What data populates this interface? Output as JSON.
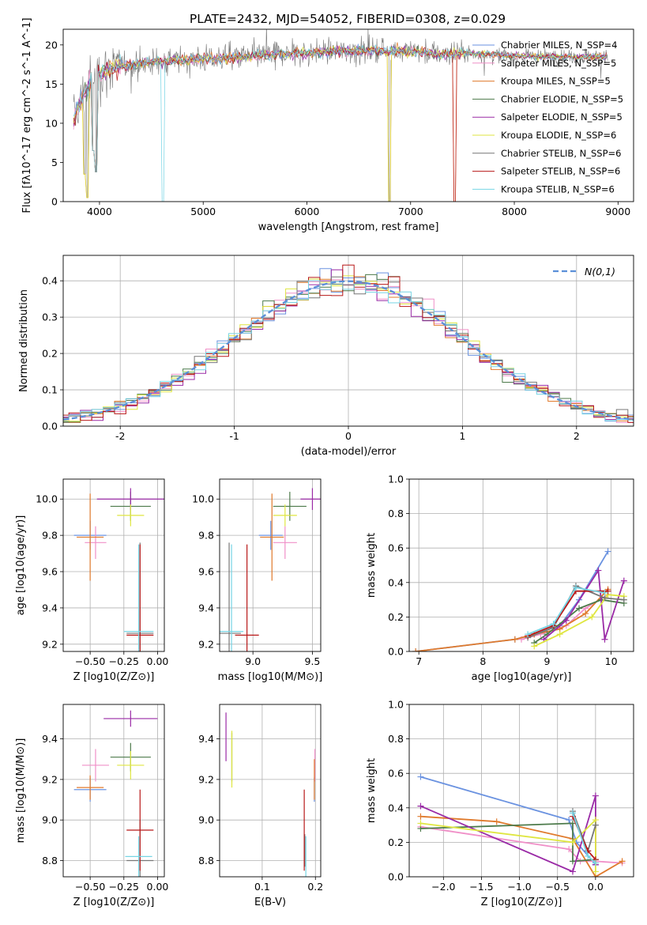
{
  "figure": {
    "title": "PLATE=2432, MJD=54052, FIBERID=0308, z=0.029"
  },
  "colors": {
    "chabrier_miles": "#6a92e0",
    "salpeter_miles": "#f090c8",
    "kroupa_miles": "#e07a2c",
    "chabrier_elodie": "#4c7a4a",
    "salpeter_elodie": "#9a2aa6",
    "kroupa_elodie": "#dfe640",
    "chabrier_stelib": "#777777",
    "salpeter_stelib": "#b81818",
    "kroupa_stelib": "#76d4e4",
    "normal_curve": "#5b8fd8",
    "grid": "#b0b0b0"
  },
  "chart_data": [
    {
      "id": "spectrum",
      "type": "line",
      "title": "PLATE=2432, MJD=54052, FIBERID=0308, z=0.029",
      "xlabel": "wavelength [Angstrom, rest frame]",
      "ylabel": "Flux [fλ10^-17 erg cm^-2 s^-1 A^-1]",
      "xlim": [
        3650,
        9150
      ],
      "ylim": [
        0,
        22
      ],
      "xticks": [
        4000,
        5000,
        6000,
        7000,
        8000,
        9000
      ],
      "yticks": [
        0,
        5,
        10,
        15,
        20
      ],
      "grid": false,
      "legend_position": "top-right",
      "legend": [
        {
          "label": "Chabrier MILES, N_SSP=4",
          "color": "#6a92e0"
        },
        {
          "label": "Salpeter MILES, N_SSP=5",
          "color": "#f090c8"
        },
        {
          "label": "Kroupa MILES, N_SSP=5",
          "color": "#e07a2c"
        },
        {
          "label": "Chabrier ELODIE, N_SSP=5",
          "color": "#4c7a4a"
        },
        {
          "label": "Salpeter ELODIE, N_SSP=5",
          "color": "#9a2aa6"
        },
        {
          "label": "Kroupa ELODIE, N_SSP=6",
          "color": "#dfe640"
        },
        {
          "label": "Chabrier STELIB, N_SSP=6",
          "color": "#777777"
        },
        {
          "label": "Salpeter STELIB, N_SSP=6",
          "color": "#b81818"
        },
        {
          "label": "Kroupa STELIB, N_SSP=6",
          "color": "#76d4e4"
        }
      ],
      "continuum": {
        "x": [
          3750,
          3800,
          3900,
          4000,
          4100,
          4300,
          4500,
          4700,
          5000,
          5500,
          6000,
          6500,
          7000,
          7300,
          7500,
          7700,
          8000,
          8300,
          8600,
          8900
        ],
        "y": [
          10.5,
          12.5,
          15.0,
          16.2,
          17.0,
          17.5,
          17.8,
          18.0,
          18.2,
          18.6,
          19.0,
          19.3,
          19.2,
          18.8,
          19.0,
          18.8,
          18.6,
          18.5,
          18.5,
          18.5
        ]
      },
      "dips": [
        {
          "x": 3860,
          "y": 3.5
        },
        {
          "x": 3885,
          "y": 0.5
        },
        {
          "x": 3933,
          "y": 6.5
        },
        {
          "x": 3968,
          "y": 3.8
        },
        {
          "x": 4615,
          "y": 0.0
        },
        {
          "x": 6800,
          "y": 0.0
        },
        {
          "x": 7425,
          "y": 0.0
        }
      ]
    },
    {
      "id": "residuals",
      "type": "histogram",
      "xlabel": "(data-model)/error",
      "ylabel": "Normed distribution",
      "xlim": [
        -2.5,
        2.5
      ],
      "ylim": [
        0,
        0.47
      ],
      "xticks": [
        -2,
        -1,
        0,
        1,
        2
      ],
      "yticks": [
        0.0,
        0.1,
        0.2,
        0.3,
        0.4
      ],
      "grid": true,
      "legend_position": "top-right",
      "normal_label": "N(0,1)",
      "bin_width": 0.1
    },
    {
      "id": "age_vs_Z",
      "type": "errorbar",
      "xlabel": "Z [log10(Z/Z⊙)]",
      "ylabel": "age [log10(age/yr)]",
      "xlim": [
        -0.7,
        0.05
      ],
      "ylim": [
        9.16,
        10.11
      ],
      "xticks": [
        -0.5,
        -0.25,
        0.0
      ],
      "xtick_labels": [
        "−0.50",
        "−0.25",
        "0.00"
      ],
      "yticks": [
        9.2,
        9.4,
        9.6,
        9.8,
        10.0
      ],
      "grid": true,
      "points": [
        {
          "model": "chabrier_miles",
          "x": -0.5,
          "y": 9.8,
          "xerr": 0.12,
          "yerr": 0.08
        },
        {
          "model": "salpeter_miles",
          "x": -0.46,
          "y": 9.76,
          "xerr": 0.08,
          "yerr": 0.09
        },
        {
          "model": "kroupa_miles",
          "x": -0.5,
          "y": 9.79,
          "xerr": 0.1,
          "yerr": 0.24
        },
        {
          "model": "chabrier_elodie",
          "x": -0.2,
          "y": 9.96,
          "xerr": 0.15,
          "yerr": 0.08
        },
        {
          "model": "salpeter_elodie",
          "x": -0.2,
          "y": 10.0,
          "xerr": 0.25,
          "yerr": 0.06
        },
        {
          "model": "kroupa_elodie",
          "x": -0.2,
          "y": 9.91,
          "xerr": 0.1,
          "yerr": 0.06
        },
        {
          "model": "chabrier_stelib",
          "x": -0.13,
          "y": 9.26,
          "xerr": 0.1,
          "yerr": 0.5
        },
        {
          "model": "salpeter_stelib",
          "x": -0.13,
          "y": 9.25,
          "xerr": 0.1,
          "yerr": 0.5
        },
        {
          "model": "kroupa_stelib",
          "x": -0.14,
          "y": 9.27,
          "xerr": 0.11,
          "yerr": 0.48
        }
      ]
    },
    {
      "id": "age_vs_mass",
      "type": "errorbar",
      "xlabel": "mass [log10(M/M⊙)]",
      "ylabel": "",
      "xlim": [
        8.72,
        9.57
      ],
      "ylim": [
        9.16,
        10.11
      ],
      "xticks": [
        9.0,
        9.5
      ],
      "yticks": [
        9.2,
        9.4,
        9.6,
        9.8,
        10.0
      ],
      "grid": true,
      "points": [
        {
          "model": "chabrier_miles",
          "x": 9.15,
          "y": 9.8,
          "xerr": 0.1,
          "yerr": 0.08
        },
        {
          "model": "salpeter_miles",
          "x": 9.27,
          "y": 9.76,
          "xerr": 0.1,
          "yerr": 0.09
        },
        {
          "model": "kroupa_miles",
          "x": 9.16,
          "y": 9.79,
          "xerr": 0.1,
          "yerr": 0.24
        },
        {
          "model": "chabrier_elodie",
          "x": 9.31,
          "y": 9.96,
          "xerr": 0.14,
          "yerr": 0.08
        },
        {
          "model": "salpeter_elodie",
          "x": 9.5,
          "y": 10.0,
          "xerr": 0.1,
          "yerr": 0.06
        },
        {
          "model": "kroupa_elodie",
          "x": 9.27,
          "y": 9.91,
          "xerr": 0.1,
          "yerr": 0.06
        },
        {
          "model": "chabrier_stelib",
          "x": 8.8,
          "y": 9.26,
          "xerr": 0.1,
          "yerr": 0.5
        },
        {
          "model": "salpeter_stelib",
          "x": 8.95,
          "y": 9.25,
          "xerr": 0.1,
          "yerr": 0.5
        },
        {
          "model": "kroupa_stelib",
          "x": 8.82,
          "y": 9.27,
          "xerr": 0.1,
          "yerr": 0.48
        }
      ]
    },
    {
      "id": "mass_weight_vs_age",
      "type": "line",
      "xlabel": "age [log10(age/yr)]",
      "ylabel": "mass weight",
      "xlim": [
        6.85,
        10.35
      ],
      "ylim": [
        0,
        1
      ],
      "xticks": [
        7,
        8,
        9,
        10
      ],
      "yticks": [
        0.0,
        0.2,
        0.4,
        0.6,
        0.8,
        1.0
      ],
      "grid": true,
      "series": [
        {
          "model": "chabrier_miles",
          "x": [
            6.95,
            8.5,
            8.8,
            9.2,
            9.5,
            9.95
          ],
          "y": [
            0.0,
            0.07,
            0.1,
            0.15,
            0.3,
            0.58
          ]
        },
        {
          "model": "salpeter_miles",
          "x": [
            8.6,
            8.9,
            9.3,
            9.6,
            9.95
          ],
          "y": [
            0.07,
            0.1,
            0.15,
            0.25,
            0.33
          ]
        },
        {
          "model": "kroupa_miles",
          "x": [
            6.95,
            8.5,
            8.8,
            9.2,
            9.6,
            9.95
          ],
          "y": [
            0.0,
            0.07,
            0.1,
            0.13,
            0.22,
            0.36
          ]
        },
        {
          "model": "chabrier_elodie",
          "x": [
            8.8,
            9.0,
            9.5,
            9.85,
            10.2
          ],
          "y": [
            0.05,
            0.1,
            0.25,
            0.3,
            0.28
          ]
        },
        {
          "model": "salpeter_elodie",
          "x": [
            8.95,
            9.3,
            9.8,
            9.9,
            10.2
          ],
          "y": [
            0.07,
            0.18,
            0.47,
            0.07,
            0.41
          ]
        },
        {
          "model": "kroupa_elodie",
          "x": [
            8.8,
            9.2,
            9.7,
            9.95,
            10.2
          ],
          "y": [
            0.03,
            0.1,
            0.2,
            0.33,
            0.32
          ]
        },
        {
          "model": "chabrier_stelib",
          "x": [
            8.7,
            9.1,
            9.45,
            9.9,
            10.2
          ],
          "y": [
            0.08,
            0.14,
            0.38,
            0.31,
            0.3
          ]
        },
        {
          "model": "salpeter_stelib",
          "x": [
            8.7,
            9.1,
            9.45,
            9.95
          ],
          "y": [
            0.09,
            0.15,
            0.35,
            0.35
          ]
        },
        {
          "model": "kroupa_stelib",
          "x": [
            8.7,
            9.1,
            9.45,
            9.9
          ],
          "y": [
            0.1,
            0.16,
            0.37,
            0.34
          ]
        }
      ]
    },
    {
      "id": "mass_vs_Z",
      "type": "errorbar",
      "xlabel": "Z [log10(Z/Z⊙)]",
      "ylabel": "mass [log10(M/M⊙)]",
      "xlim": [
        -0.7,
        0.05
      ],
      "ylim": [
        8.72,
        9.57
      ],
      "xticks": [
        -0.5,
        -0.25,
        0.0
      ],
      "xtick_labels": [
        "−0.50",
        "−0.25",
        "0.00"
      ],
      "yticks": [
        8.8,
        9.0,
        9.2,
        9.4
      ],
      "grid": true,
      "points": [
        {
          "model": "chabrier_miles",
          "x": -0.5,
          "y": 9.15,
          "xerr": 0.12,
          "yerr": 0.06
        },
        {
          "model": "salpeter_miles",
          "x": -0.46,
          "y": 9.27,
          "xerr": 0.1,
          "yerr": 0.08
        },
        {
          "model": "kroupa_miles",
          "x": -0.5,
          "y": 9.16,
          "xerr": 0.1,
          "yerr": 0.06
        },
        {
          "model": "chabrier_elodie",
          "x": -0.2,
          "y": 9.31,
          "xerr": 0.15,
          "yerr": 0.07
        },
        {
          "model": "salpeter_elodie",
          "x": -0.2,
          "y": 9.5,
          "xerr": 0.2,
          "yerr": 0.04
        },
        {
          "model": "kroupa_elodie",
          "x": -0.2,
          "y": 9.27,
          "xerr": 0.1,
          "yerr": 0.07
        },
        {
          "model": "chabrier_stelib",
          "x": -0.13,
          "y": 8.8,
          "xerr": 0.1,
          "yerr": 0.2
        },
        {
          "model": "salpeter_stelib",
          "x": -0.13,
          "y": 8.95,
          "xerr": 0.1,
          "yerr": 0.2
        },
        {
          "model": "kroupa_stelib",
          "x": -0.14,
          "y": 8.82,
          "xerr": 0.1,
          "yerr": 0.1
        }
      ]
    },
    {
      "id": "mass_vs_ebv",
      "type": "errorbar",
      "xlabel": "E(B-V)",
      "ylabel": "",
      "xlim": [
        0.02,
        0.21
      ],
      "ylim": [
        8.72,
        9.57
      ],
      "xticks": [
        0.1,
        0.2
      ],
      "yticks": [
        8.8,
        9.0,
        9.2,
        9.4
      ],
      "grid": true,
      "points": [
        {
          "model": "chabrier_miles",
          "x": 0.198,
          "y": 9.15,
          "xerr": 0.0,
          "yerr": 0.06
        },
        {
          "model": "salpeter_miles",
          "x": 0.199,
          "y": 9.27,
          "xerr": 0.0,
          "yerr": 0.08
        },
        {
          "model": "kroupa_miles",
          "x": 0.198,
          "y": 9.2,
          "xerr": 0.0,
          "yerr": 0.1
        },
        {
          "model": "chabrier_elodie",
          "x": 0.043,
          "y": 9.31,
          "xerr": 0.0,
          "yerr": 0.12
        },
        {
          "model": "salpeter_elodie",
          "x": 0.032,
          "y": 9.41,
          "xerr": 0.0,
          "yerr": 0.12
        },
        {
          "model": "kroupa_elodie",
          "x": 0.043,
          "y": 9.3,
          "xerr": 0.0,
          "yerr": 0.14
        },
        {
          "model": "chabrier_stelib",
          "x": 0.18,
          "y": 8.85,
          "xerr": 0.0,
          "yerr": 0.08
        },
        {
          "model": "salpeter_stelib",
          "x": 0.179,
          "y": 8.95,
          "xerr": 0.0,
          "yerr": 0.2
        },
        {
          "model": "kroupa_stelib",
          "x": 0.182,
          "y": 8.82,
          "xerr": 0.0,
          "yerr": 0.1
        }
      ]
    },
    {
      "id": "mass_weight_vs_Z",
      "type": "line",
      "xlabel": "Z [log10(Z/Z⊙)]",
      "ylabel": "mass weight",
      "xlim": [
        -2.45,
        0.5
      ],
      "ylim": [
        0,
        1
      ],
      "xticks": [
        -2.0,
        -1.5,
        -1.0,
        -0.5,
        0.0
      ],
      "xtick_labels": [
        "−2.0",
        "−1.5",
        "−1.0",
        "−0.5",
        "0.0"
      ],
      "yticks": [
        0.0,
        0.2,
        0.4,
        0.6,
        0.8,
        1.0
      ],
      "grid": true,
      "series": [
        {
          "model": "chabrier_miles",
          "x": [
            -2.3,
            -0.35,
            -0.25,
            0.0
          ],
          "y": [
            0.58,
            0.33,
            0.2,
            0.07
          ]
        },
        {
          "model": "salpeter_miles",
          "x": [
            -2.3,
            -0.35,
            -0.2,
            0.0,
            0.35
          ],
          "y": [
            0.29,
            0.16,
            0.09,
            0.09,
            0.08
          ]
        },
        {
          "model": "kroupa_miles",
          "x": [
            -2.3,
            -1.3,
            -0.3,
            0.0,
            0.35
          ],
          "y": [
            0.35,
            0.32,
            0.22,
            0.0,
            0.09
          ]
        },
        {
          "model": "chabrier_elodie",
          "x": [
            -2.3,
            -0.3,
            -0.3,
            0.0
          ],
          "y": [
            0.28,
            0.31,
            0.09,
            0.1
          ]
        },
        {
          "model": "salpeter_elodie",
          "x": [
            -2.3,
            -0.3,
            0.0,
            0.0
          ],
          "y": [
            0.41,
            0.03,
            0.47,
            0.07
          ]
        },
        {
          "model": "kroupa_elodie",
          "x": [
            -2.3,
            -0.3,
            0.0,
            0.0
          ],
          "y": [
            0.31,
            0.2,
            0.33,
            0.03
          ]
        },
        {
          "model": "chabrier_stelib",
          "x": [
            -0.3,
            -0.1,
            0.0
          ],
          "y": [
            0.38,
            0.15,
            0.3
          ]
        },
        {
          "model": "salpeter_stelib",
          "x": [
            -0.3,
            -0.1,
            0.0
          ],
          "y": [
            0.35,
            0.15,
            0.1
          ]
        },
        {
          "model": "kroupa_stelib",
          "x": [
            -0.3,
            -0.1,
            0.0
          ],
          "y": [
            0.37,
            0.12,
            0.08
          ]
        }
      ]
    }
  ]
}
